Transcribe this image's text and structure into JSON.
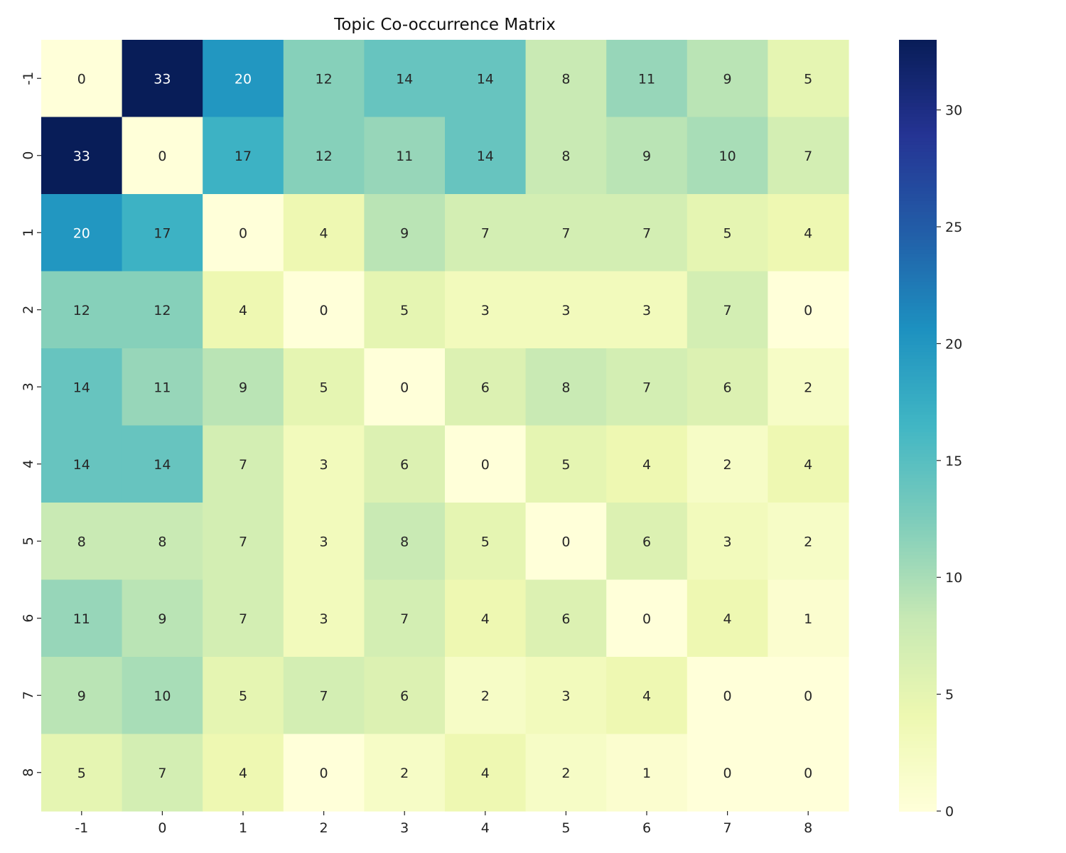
{
  "chart_data": {
    "type": "heatmap",
    "title": "Topic Co-occurrence Matrix",
    "xlabel": "",
    "ylabel": "",
    "x_labels": [
      "-1",
      "0",
      "1",
      "2",
      "3",
      "4",
      "5",
      "6",
      "7",
      "8"
    ],
    "y_labels": [
      "-1",
      "0",
      "1",
      "2",
      "3",
      "4",
      "5",
      "6",
      "7",
      "8"
    ],
    "values": [
      [
        0,
        33,
        20,
        12,
        14,
        14,
        8,
        11,
        9,
        5
      ],
      [
        33,
        0,
        17,
        12,
        11,
        14,
        8,
        9,
        10,
        7
      ],
      [
        20,
        17,
        0,
        4,
        9,
        7,
        7,
        7,
        5,
        4
      ],
      [
        12,
        12,
        4,
        0,
        5,
        3,
        3,
        3,
        7,
        0
      ],
      [
        14,
        11,
        9,
        5,
        0,
        6,
        8,
        7,
        6,
        2
      ],
      [
        14,
        14,
        7,
        3,
        6,
        0,
        5,
        4,
        2,
        4
      ],
      [
        8,
        8,
        7,
        3,
        8,
        5,
        0,
        6,
        3,
        2
      ],
      [
        11,
        9,
        7,
        3,
        7,
        4,
        6,
        0,
        4,
        1
      ],
      [
        9,
        10,
        5,
        7,
        6,
        2,
        3,
        4,
        0,
        0
      ],
      [
        5,
        7,
        4,
        0,
        2,
        4,
        2,
        1,
        0,
        0
      ]
    ],
    "colormap": "YlGnBu",
    "colormap_stops": [
      "#ffffd9",
      "#edf8b1",
      "#c7e9b4",
      "#7fcdbb",
      "#41b6c4",
      "#1d91c0",
      "#225ea8",
      "#253494",
      "#081d58"
    ],
    "vmin": 0,
    "vmax": 33,
    "colorbar_ticks": [
      0,
      5,
      10,
      15,
      20,
      25,
      30
    ],
    "annotation_dark_text_color": "#262626",
    "annotation_light_text_color": "#ffffff",
    "grid": false
  }
}
